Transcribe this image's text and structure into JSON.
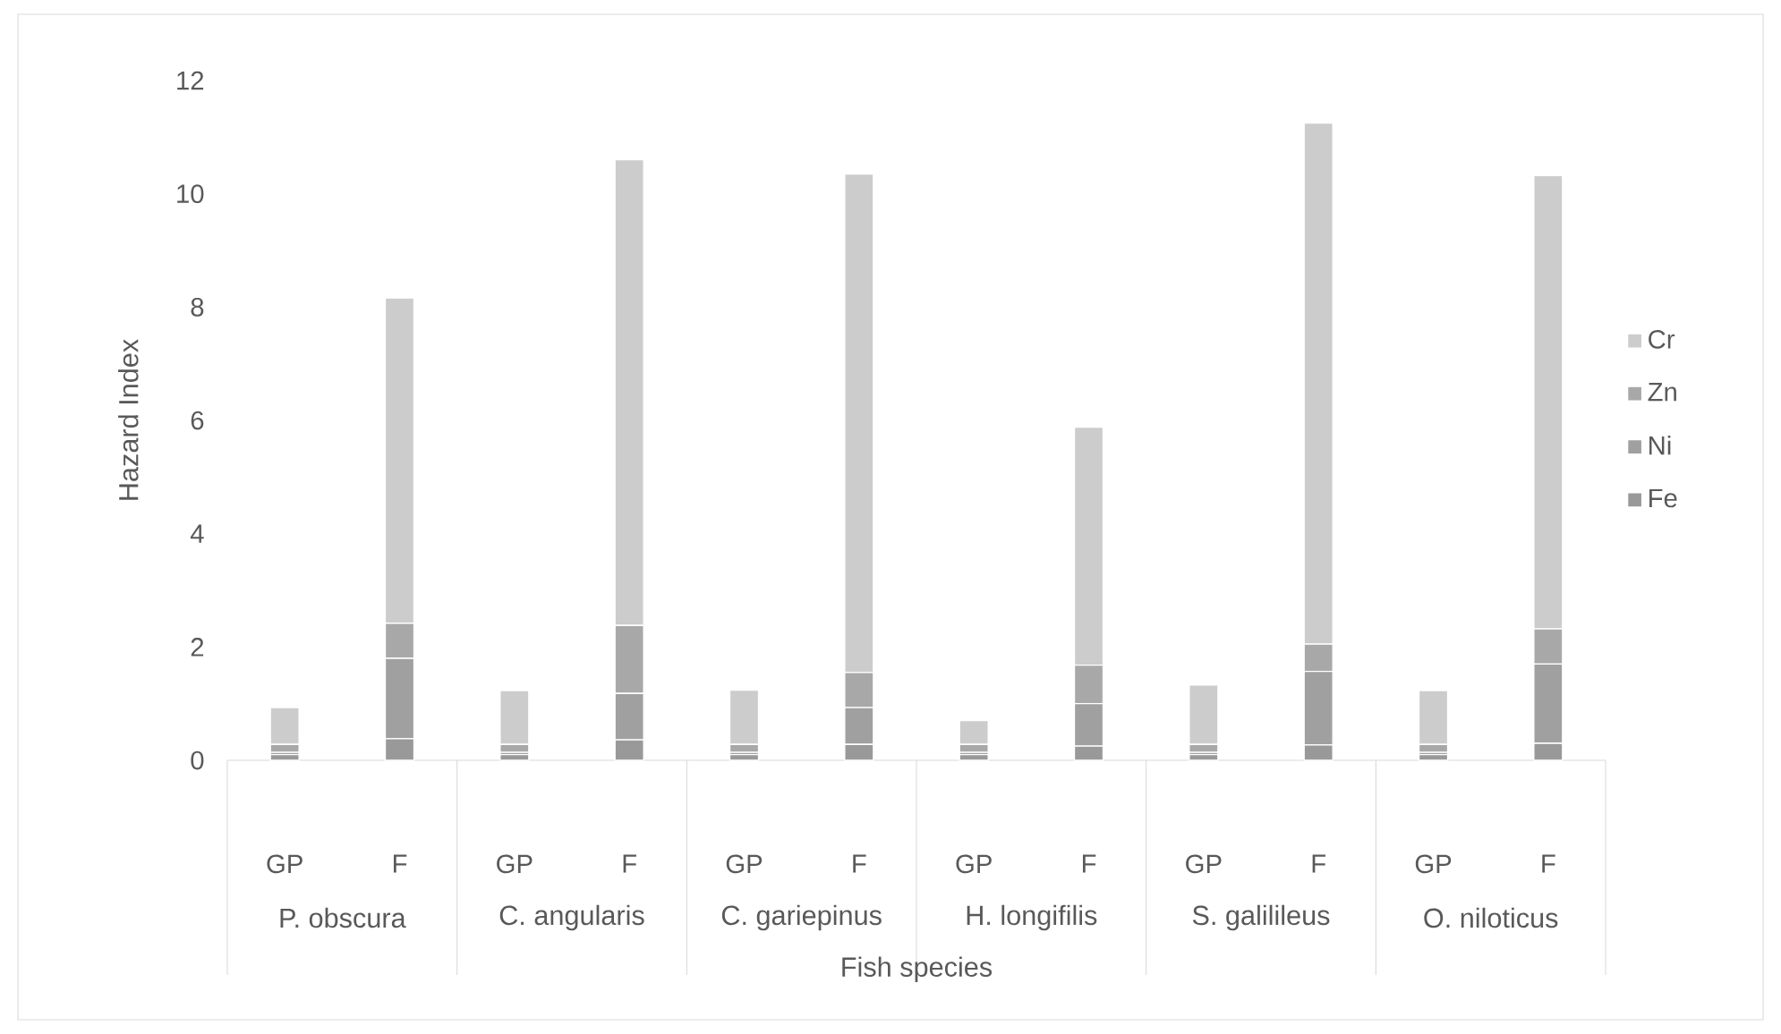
{
  "chart_data": {
    "type": "bar",
    "stacked": true,
    "xlabel": "Fish species",
    "ylabel": "Hazard Index",
    "categories": [
      "GP",
      "F",
      "GP",
      "F",
      "GP",
      "F",
      "GP",
      "F",
      "GP",
      "F",
      "GP",
      "F"
    ],
    "annotations": [
      "P. obscura",
      "C. angularis",
      "C. gariepinus",
      "H. longifilis",
      "S. galilileus",
      "O. niloticus"
    ],
    "series": [
      {
        "name": "Fe",
        "color": "#999999",
        "values": [
          0.1,
          0.38,
          0.1,
          0.36,
          0.1,
          0.28,
          0.1,
          0.25,
          0.1,
          0.27,
          0.1,
          0.3
        ]
      },
      {
        "name": "Ni",
        "color": "#a0a0a0",
        "values": [
          0.04,
          1.42,
          0.04,
          0.82,
          0.04,
          0.65,
          0.04,
          0.75,
          0.04,
          1.3,
          0.04,
          1.4
        ]
      },
      {
        "name": "Zn",
        "color": "#a8a8a8",
        "values": [
          0.14,
          0.62,
          0.14,
          1.2,
          0.14,
          0.62,
          0.14,
          0.68,
          0.14,
          0.48,
          0.14,
          0.62
        ]
      },
      {
        "name": "Cr",
        "color": "#cccccc",
        "values": [
          0.65,
          5.74,
          0.95,
          8.22,
          0.96,
          8.8,
          0.42,
          4.2,
          1.05,
          9.2,
          0.95,
          8.0
        ]
      }
    ],
    "ylim": [
      0,
      12
    ],
    "yticks": [
      0,
      2,
      4,
      6,
      8,
      10,
      12
    ],
    "legend": "right"
  }
}
